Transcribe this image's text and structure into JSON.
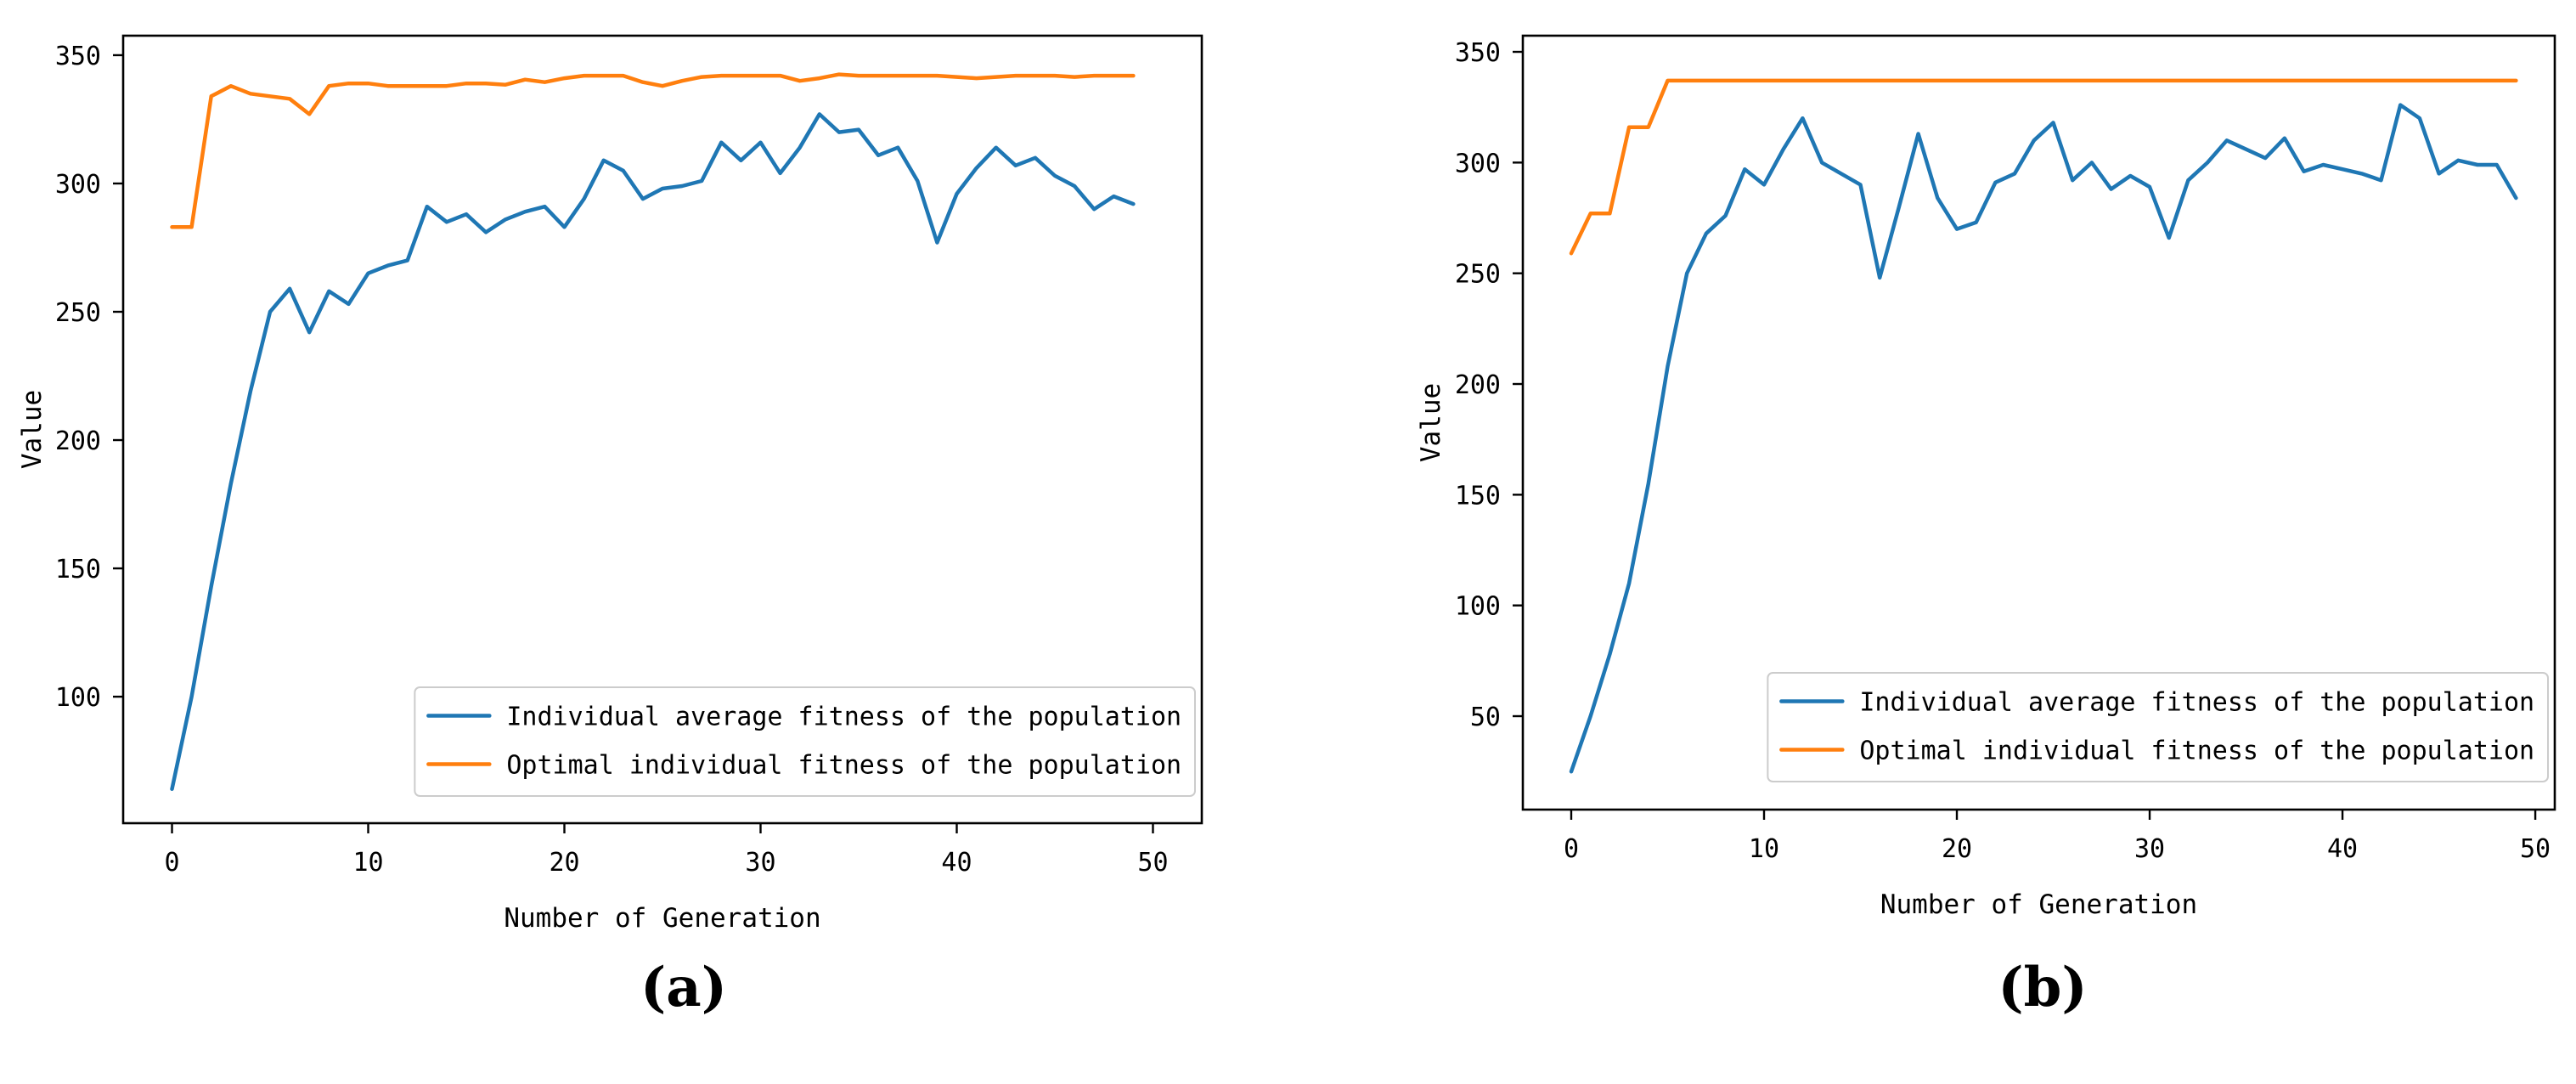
{
  "page": {
    "background": "#ffffff"
  },
  "chart_data": [
    {
      "id": "a",
      "type": "line",
      "caption": "(a)",
      "title": "",
      "xlabel": "Number of Generation",
      "ylabel": "Value",
      "x_ticks": [
        0,
        10,
        20,
        30,
        40,
        50
      ],
      "y_ticks": [
        100,
        150,
        200,
        250,
        300,
        350
      ],
      "xlim": [
        -2.49,
        52.49
      ],
      "ylim": [
        50.7,
        357.6
      ],
      "grid": false,
      "legend_position": "lower right",
      "x": [
        0,
        1,
        2,
        3,
        4,
        5,
        6,
        7,
        8,
        9,
        10,
        11,
        12,
        13,
        14,
        15,
        16,
        17,
        18,
        19,
        20,
        21,
        22,
        23,
        24,
        25,
        26,
        27,
        28,
        29,
        30,
        31,
        32,
        33,
        34,
        35,
        36,
        37,
        38,
        39,
        40,
        41,
        42,
        43,
        44,
        45,
        46,
        47,
        48,
        49
      ],
      "series": [
        {
          "name": "Individual average fitness of the population",
          "color": "#1f77b4",
          "values": [
            64,
            100,
            143,
            183,
            219,
            250,
            259,
            242,
            258,
            253,
            265,
            268,
            270,
            291,
            285,
            288,
            281,
            286,
            289,
            291,
            283,
            294,
            309,
            305,
            294,
            298,
            299,
            301,
            316,
            309,
            316,
            304,
            314,
            327,
            320,
            321,
            311,
            314,
            301,
            277,
            296,
            306,
            314,
            307,
            310,
            303,
            299,
            290,
            295,
            292
          ]
        },
        {
          "name": "Optimal individual fitness of the population",
          "color": "#ff7f0e",
          "values": [
            283,
            283,
            334,
            338,
            335,
            334,
            333,
            327,
            338,
            339,
            339,
            338,
            338,
            338,
            338,
            339,
            339,
            338.5,
            340.5,
            339.5,
            341,
            342,
            342,
            342,
            339.5,
            338,
            340,
            341.5,
            342,
            342,
            342,
            342,
            340,
            341,
            342.5,
            342,
            342,
            342,
            342,
            342,
            341.5,
            341,
            341.5,
            342,
            342,
            342,
            341.5,
            342,
            342,
            342
          ]
        }
      ]
    },
    {
      "id": "b",
      "type": "line",
      "caption": "(b)",
      "title": "",
      "xlabel": "Number of Generation",
      "ylabel": "Value",
      "x_ticks": [
        0,
        10,
        20,
        30,
        40,
        50
      ],
      "y_ticks": [
        50,
        100,
        150,
        200,
        250,
        300,
        350
      ],
      "xlim": [
        -2.51,
        51.01
      ],
      "ylim": [
        7.8,
        357.3
      ],
      "grid": false,
      "legend_position": "lower right",
      "x": [
        0,
        1,
        2,
        3,
        4,
        5,
        6,
        7,
        8,
        9,
        10,
        11,
        12,
        13,
        14,
        15,
        16,
        17,
        18,
        19,
        20,
        21,
        22,
        23,
        24,
        25,
        26,
        27,
        28,
        29,
        30,
        31,
        32,
        33,
        34,
        35,
        36,
        37,
        38,
        39,
        40,
        41,
        42,
        43,
        44,
        45,
        46,
        47,
        48,
        49
      ],
      "series": [
        {
          "name": "Individual average fitness of the population",
          "color": "#1f77b4",
          "values": [
            25,
            50,
            78,
            110,
            155,
            208,
            250,
            268,
            276,
            297,
            290,
            306,
            320,
            300,
            295,
            290,
            248,
            280,
            313,
            284,
            270,
            273,
            291,
            295,
            310,
            318,
            292,
            300,
            288,
            294,
            289,
            266,
            292,
            300,
            310,
            306,
            302,
            311,
            296,
            299,
            297,
            295,
            292,
            326,
            320,
            295,
            301,
            299,
            299,
            284
          ]
        },
        {
          "name": "Optimal individual fitness of the population",
          "color": "#ff7f0e",
          "values": [
            259,
            277,
            277,
            316,
            316,
            337,
            337,
            337,
            337,
            337,
            337,
            337,
            337,
            337,
            337,
            337,
            337,
            337,
            337,
            337,
            337,
            337,
            337,
            337,
            337,
            337,
            337,
            337,
            337,
            337,
            337,
            337,
            337,
            337,
            337,
            337,
            337,
            337,
            337,
            337,
            337,
            337,
            337,
            337,
            337,
            337,
            337,
            337,
            337,
            337
          ]
        }
      ]
    }
  ]
}
